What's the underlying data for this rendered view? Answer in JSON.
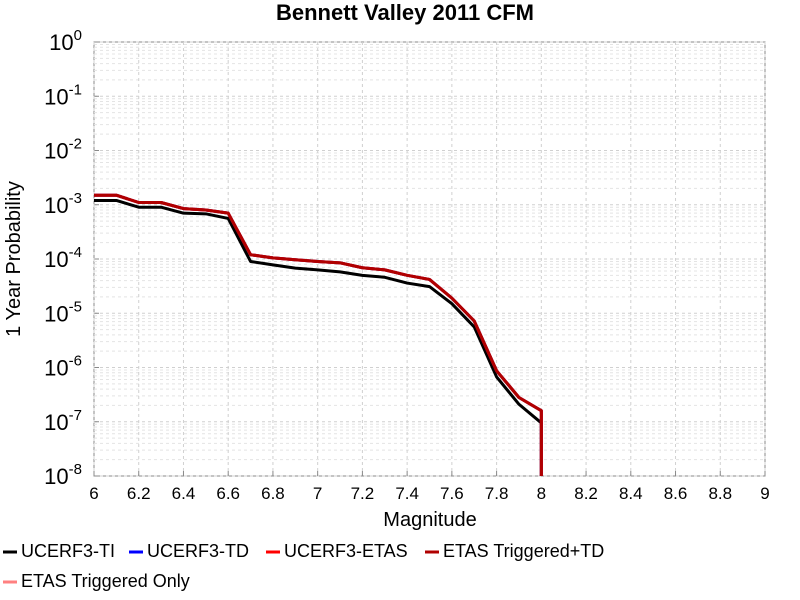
{
  "chart_data": {
    "type": "line",
    "title": "Bennett Valley 2011 CFM",
    "x_label": "Magnitude",
    "y_label": "1 Year Probability",
    "log_y": true,
    "grid": true,
    "legend": "bottom",
    "x": [
      6.0,
      6.1,
      6.2,
      6.3,
      6.4,
      6.5,
      6.6,
      6.7,
      6.8,
      6.9,
      7.0,
      7.1,
      7.2,
      7.3,
      7.4,
      7.5,
      7.6,
      7.7,
      7.8,
      7.9,
      8.0,
      8.0
    ],
    "series": [
      {
        "name": "UCERF3-TI",
        "color": "#000000",
        "values": [
          0.0012,
          0.0012,
          0.0009,
          0.0009,
          0.0007,
          0.00068,
          0.00056,
          9e-05,
          7.8e-05,
          6.8e-05,
          6.3e-05,
          5.8e-05,
          5e-05,
          4.6e-05,
          3.6e-05,
          3.1e-05,
          1.5e-05,
          5.6e-06,
          6.7e-07,
          2.1e-07,
          9.5e-08,
          0
        ]
      },
      {
        "name": "UCERF3-TD",
        "color": "#0000ff",
        "values": [
          0.0015,
          0.0015,
          0.0011,
          0.0011,
          0.00085,
          0.0008,
          0.0007,
          0.00012,
          0.000105,
          9.7e-05,
          9e-05,
          8.5e-05,
          6.9e-05,
          6.3e-05,
          5e-05,
          4.2e-05,
          1.9e-05,
          7.2e-06,
          8.7e-07,
          2.8e-07,
          1.6e-07,
          0
        ]
      },
      {
        "name": "UCERF3-ETAS",
        "color": "#ff0000",
        "values": [
          0.0015,
          0.0015,
          0.0011,
          0.0011,
          0.00085,
          0.0008,
          0.0007,
          0.00012,
          0.000105,
          9.7e-05,
          9e-05,
          8.5e-05,
          6.9e-05,
          6.3e-05,
          5e-05,
          4.2e-05,
          1.9e-05,
          7.2e-06,
          8.7e-07,
          2.8e-07,
          1.6e-07,
          0
        ]
      },
      {
        "name": "ETAS Triggered+TD",
        "color": "#b00000",
        "values": [
          0.0015,
          0.0015,
          0.0011,
          0.0011,
          0.00085,
          0.0008,
          0.0007,
          0.00012,
          0.000105,
          9.7e-05,
          9e-05,
          8.5e-05,
          6.9e-05,
          6.3e-05,
          5e-05,
          4.2e-05,
          1.9e-05,
          7.2e-06,
          8.7e-07,
          2.8e-07,
          1.6e-07,
          0
        ]
      },
      {
        "name": "ETAS Triggered Only",
        "color": "#ff8080",
        "values": [
          null,
          null,
          null,
          null,
          null,
          null,
          null,
          null,
          null,
          null,
          null,
          null,
          null,
          null,
          null,
          null,
          null,
          null,
          null,
          null,
          null,
          null
        ]
      }
    ],
    "xlim": [
      6,
      9
    ],
    "xticks": [
      6,
      6.2,
      6.4,
      6.6,
      6.8,
      7,
      7.2,
      7.4,
      7.6,
      7.8,
      8,
      8.2,
      8.4,
      8.6,
      8.8,
      9
    ],
    "ylim": [
      1e-08,
      1
    ],
    "yticks": [
      {
        "value": 1e-08,
        "label": "10",
        "sup": "-8"
      },
      {
        "value": 1e-07,
        "label": "10",
        "sup": "-7"
      },
      {
        "value": 1e-06,
        "label": "10",
        "sup": "-6"
      },
      {
        "value": 1e-05,
        "label": "10",
        "sup": "-5"
      },
      {
        "value": 0.0001,
        "label": "10",
        "sup": "-4"
      },
      {
        "value": 0.001,
        "label": "10",
        "sup": "-3"
      },
      {
        "value": 0.01,
        "label": "10",
        "sup": "-2"
      },
      {
        "value": 0.1,
        "label": "10",
        "sup": "-1"
      },
      {
        "value": 1,
        "label": "10",
        "sup": "0"
      }
    ]
  }
}
